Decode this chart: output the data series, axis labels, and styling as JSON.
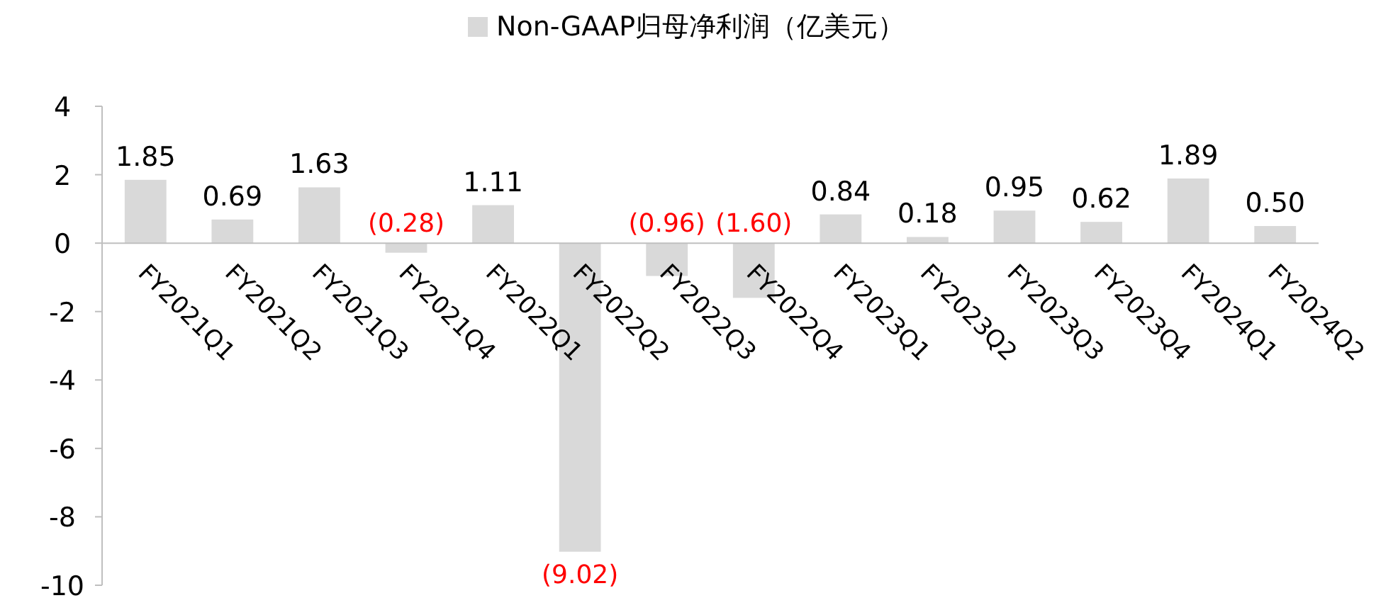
{
  "chart_data": {
    "type": "bar",
    "legend": "top",
    "categories": [
      "FY2021Q1",
      "FY2021Q2",
      "FY2021Q3",
      "FY2021Q4",
      "FY2022Q1",
      "FY2022Q2",
      "FY2022Q3",
      "FY2022Q4",
      "FY2023Q1",
      "FY2023Q2",
      "FY2023Q3",
      "FY2023Q4",
      "FY2024Q1",
      "FY2024Q2"
    ],
    "series": [
      {
        "name": "Non-GAAP归母净利润（亿美元）",
        "color": "#d9d9d9",
        "values": [
          1.85,
          0.69,
          1.63,
          -0.28,
          1.11,
          -9.02,
          -0.96,
          -1.6,
          0.84,
          0.18,
          0.95,
          0.62,
          1.89,
          0.5
        ],
        "value_labels": [
          "1.85",
          "0.69",
          "1.63",
          "(0.28)",
          "1.11",
          "(9.02)",
          "(0.96)",
          "(1.60)",
          "0.84",
          "0.18",
          "0.95",
          "0.62",
          "1.89",
          "0.50"
        ]
      }
    ],
    "ylim": [
      -10,
      4
    ],
    "yticks": [
      -10,
      -8,
      -6,
      -4,
      -2,
      0,
      2,
      4
    ]
  }
}
